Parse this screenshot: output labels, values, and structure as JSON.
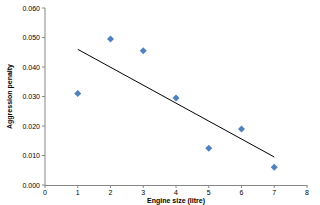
{
  "chart_data": {
    "type": "scatter",
    "x_label": "Engine size (litre)",
    "y_label": "Aggression penalty",
    "x": [
      1,
      2,
      3,
      4,
      5,
      6,
      7
    ],
    "series": [
      {
        "type": "scatter",
        "color": "#4f81bd",
        "marker": "diamond",
        "values": [
          0.031,
          0.0495,
          0.0455,
          0.0295,
          0.0125,
          0.019,
          0.006
        ]
      },
      {
        "type": "line",
        "color": "#000000",
        "line_style": "solid",
        "x": [
          1,
          7
        ],
        "values": [
          0.046,
          0.0095
        ]
      }
    ],
    "xlim": [
      0,
      8
    ],
    "xticks": [
      0,
      1,
      2,
      3,
      4,
      5,
      6,
      7,
      8
    ],
    "ylim": [
      0,
      0.06
    ],
    "yticks": [
      {
        "value": 0,
        "label": "0.000"
      },
      {
        "value": 0.01,
        "label": "0.010"
      },
      {
        "value": 0.02,
        "label": "0.020"
      },
      {
        "value": 0.03,
        "label": "0.030"
      },
      {
        "value": 0.04,
        "label": "0.040"
      },
      {
        "value": 0.05,
        "label": "0.050"
      },
      {
        "value": 0.06,
        "label": "0.060"
      }
    ],
    "grid": false
  }
}
